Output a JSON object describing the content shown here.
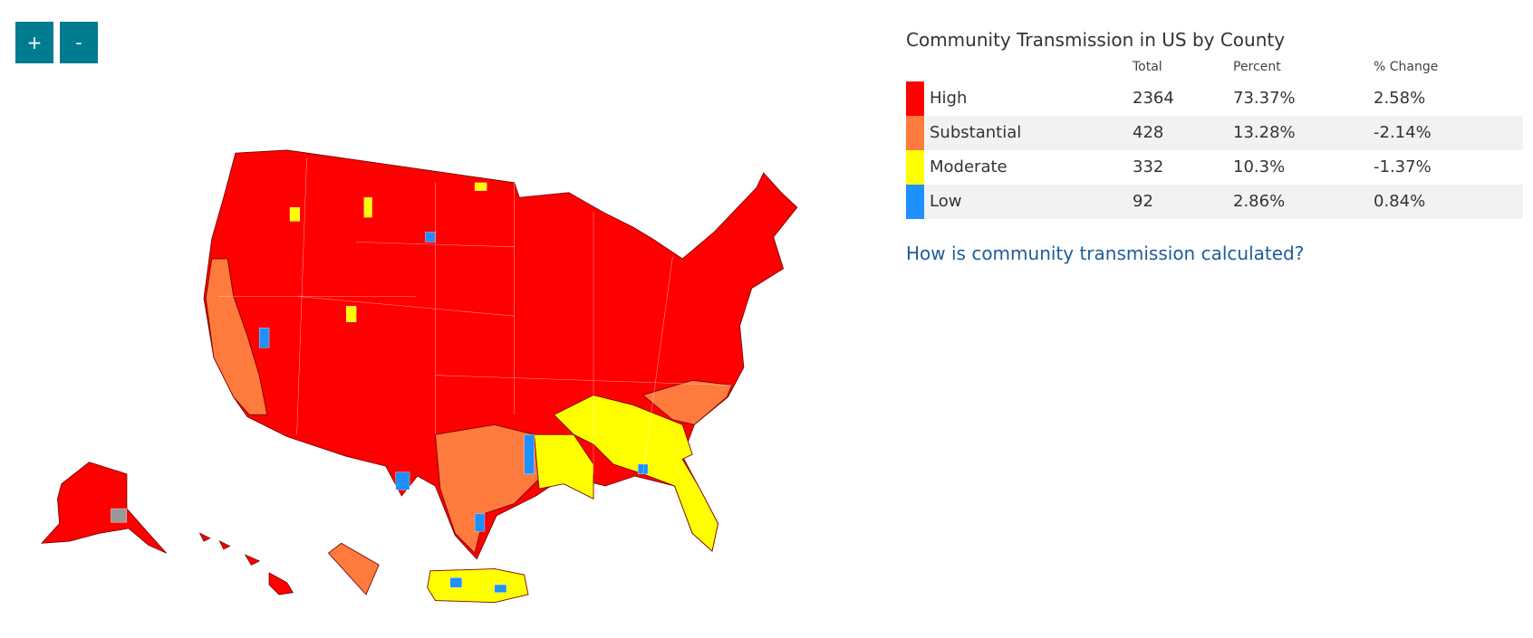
{
  "zoom_controls": {
    "zoom_in": "+",
    "zoom_out": "-"
  },
  "legend": {
    "title": "Community Transmission in US by County",
    "columns": [
      "Total",
      "Percent",
      "% Change"
    ],
    "rows": [
      {
        "level": "High",
        "color": "#ff0000",
        "total": 2364,
        "percent": "73.37%",
        "change": "2.58%"
      },
      {
        "level": "Substantial",
        "color": "#ff7b3d",
        "total": 428,
        "percent": "13.28%",
        "change": "-2.14%"
      },
      {
        "level": "Moderate",
        "color": "#ffff00",
        "total": 332,
        "percent": "10.3%",
        "change": "-1.37%"
      },
      {
        "level": "Low",
        "color": "#1e90ff",
        "total": 92,
        "percent": "2.86%",
        "change": "0.84%"
      }
    ]
  },
  "link": "How is community transmission calculated?"
}
